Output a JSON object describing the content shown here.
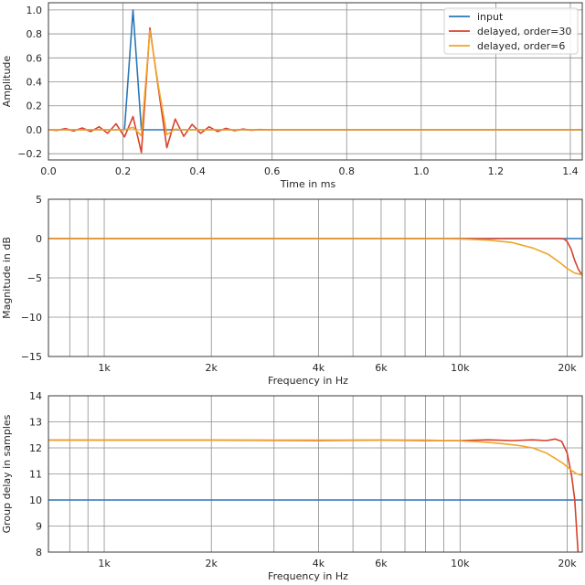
{
  "chart_data": [
    {
      "type": "line",
      "title": "",
      "xlabel": "Time in ms",
      "ylabel": "Amplitude",
      "xscale": "linear",
      "xlim": [
        0,
        1.432
      ],
      "ylim": [
        -0.252,
        1.06
      ],
      "xticks": [
        0,
        0.2,
        0.4,
        0.6,
        0.8,
        1.0,
        1.2,
        1.4
      ],
      "xtick_labels": [
        "0.0",
        "0.2",
        "0.4",
        "0.6",
        "0.8",
        "1.0",
        "1.2",
        "1.4"
      ],
      "yticks": [
        -0.2,
        0,
        0.2,
        0.4,
        0.6,
        0.8,
        1.0
      ],
      "ytick_labels": [
        "−0.2",
        "0.0",
        "0.2",
        "0.4",
        "0.6",
        "0.8",
        "1.0"
      ],
      "grid": true,
      "legend": {
        "placement": "top-right",
        "entries": [
          "input",
          "delayed, order=30",
          "delayed, order=6"
        ]
      },
      "sample_period_ms": 0.022676,
      "series": [
        {
          "name": "input",
          "color": "#2a77b8",
          "values": [
            0,
            0,
            0,
            0,
            0,
            0,
            0,
            0,
            0,
            0,
            1,
            0,
            0,
            0,
            0,
            0,
            0,
            0,
            0,
            0,
            0,
            0,
            0,
            0,
            0,
            0,
            0,
            0,
            0,
            0,
            0,
            0,
            0,
            0,
            0,
            0,
            0,
            0,
            0,
            0,
            0,
            0,
            0,
            0,
            0,
            0,
            0,
            0,
            0,
            0,
            0,
            0,
            0,
            0,
            0,
            0,
            0,
            0,
            0,
            0,
            0,
            0,
            0,
            0,
            0
          ]
        },
        {
          "name": "delayed, order=30",
          "color": "#d8412b",
          "values": [
            0,
            -0.005,
            0.01,
            -0.01,
            0.015,
            -0.015,
            0.025,
            -0.03,
            0.05,
            -0.06,
            0.11,
            -0.19,
            0.85,
            0.35,
            -0.15,
            0.09,
            -0.055,
            0.045,
            -0.03,
            0.025,
            -0.015,
            0.012,
            -0.008,
            0.006,
            -0.003,
            0.002,
            0,
            0,
            0,
            0,
            0,
            0,
            0,
            0,
            0,
            0,
            0,
            0,
            0,
            0,
            0,
            0,
            0,
            0,
            0,
            0,
            0,
            0,
            0,
            0,
            0,
            0,
            0,
            0,
            0,
            0,
            0,
            0,
            0,
            0,
            0,
            0,
            0,
            0,
            0
          ]
        },
        {
          "name": "delayed, order=6",
          "color": "#f0a52a",
          "values": [
            0,
            0,
            0,
            0,
            0,
            0,
            0,
            0,
            0,
            0,
            0.02,
            -0.05,
            0.83,
            0.37,
            -0.04,
            0.005,
            0,
            0,
            0,
            0,
            0,
            0,
            0,
            0,
            0,
            0,
            0,
            0,
            0,
            0,
            0,
            0,
            0,
            0,
            0,
            0,
            0,
            0,
            0,
            0,
            0,
            0,
            0,
            0,
            0,
            0,
            0,
            0,
            0,
            0,
            0,
            0,
            0,
            0,
            0,
            0,
            0,
            0,
            0,
            0,
            0,
            0,
            0,
            0,
            0
          ]
        }
      ]
    },
    {
      "type": "line",
      "xlabel": "Frequency in Hz",
      "ylabel": "Magnitude in dB",
      "xscale": "log",
      "xlim": [
        697,
        22050
      ],
      "ylim": [
        -15,
        5
      ],
      "xticks": [
        1000,
        2000,
        4000,
        6000,
        10000,
        20000
      ],
      "xtick_labels": [
        "1k",
        "2k",
        "4k",
        "6k",
        "10k",
        "20k"
      ],
      "xgrid": [
        800,
        900,
        1000,
        2000,
        3000,
        4000,
        5000,
        6000,
        7000,
        8000,
        9000,
        10000,
        20000
      ],
      "yticks": [
        -15,
        -10,
        -5,
        0,
        5
      ],
      "ytick_labels": [
        "−15",
        "−10",
        "−5",
        "0",
        "5"
      ],
      "grid": true,
      "series": [
        {
          "name": "input",
          "color": "#2a77b8",
          "x": [
            697,
            22050
          ],
          "y": [
            0,
            0
          ]
        },
        {
          "name": "delayed, order=30",
          "color": "#d8412b",
          "x": [
            697,
            10000,
            15000,
            19000,
            19600,
            20000,
            20500,
            21000,
            21500,
            22050
          ],
          "y": [
            0,
            0,
            0,
            0,
            -0.05,
            -0.4,
            -1.3,
            -2.8,
            -3.9,
            -4.7
          ]
        },
        {
          "name": "delayed, order=6",
          "color": "#f0a52a",
          "x": [
            697,
            8000,
            10000,
            12000,
            14000,
            16000,
            17700,
            19000,
            20000,
            21000,
            22050
          ],
          "y": [
            0,
            0,
            -0.05,
            -0.2,
            -0.5,
            -1.2,
            -2.0,
            -3.0,
            -3.8,
            -4.4,
            -4.6
          ]
        }
      ]
    },
    {
      "type": "line",
      "xlabel": "Frequency in Hz",
      "ylabel": "Group delay in samples",
      "xscale": "log",
      "xlim": [
        697,
        22050
      ],
      "ylim": [
        8,
        14
      ],
      "xticks": [
        1000,
        2000,
        4000,
        6000,
        10000,
        20000
      ],
      "xtick_labels": [
        "1k",
        "2k",
        "4k",
        "6k",
        "10k",
        "20k"
      ],
      "xgrid": [
        800,
        900,
        1000,
        2000,
        3000,
        4000,
        5000,
        6000,
        7000,
        8000,
        9000,
        10000,
        20000
      ],
      "yticks": [
        8,
        9,
        10,
        11,
        12,
        13,
        14
      ],
      "ytick_labels": [
        "8",
        "9",
        "10",
        "11",
        "12",
        "13",
        "14"
      ],
      "grid": true,
      "series": [
        {
          "name": "input",
          "color": "#2a77b8",
          "x": [
            697,
            22050
          ],
          "y": [
            10,
            10
          ]
        },
        {
          "name": "delayed, order=30",
          "color": "#d8412b",
          "x": [
            697,
            2000,
            4000,
            6000,
            8000,
            10000,
            12000,
            14000,
            16000,
            17500,
            18500,
            19300,
            20000,
            20600,
            21000,
            21460
          ],
          "y": [
            12.3,
            12.3,
            12.28,
            12.3,
            12.28,
            12.28,
            12.31,
            12.28,
            12.31,
            12.28,
            12.34,
            12.25,
            11.8,
            10.9,
            10.0,
            8.0
          ]
        },
        {
          "name": "delayed, order=6",
          "color": "#f0a52a",
          "x": [
            697,
            4000,
            8000,
            10000,
            11500,
            13000,
            14500,
            16000,
            17500,
            18500,
            19500,
            20500,
            21300,
            22050
          ],
          "y": [
            12.3,
            12.3,
            12.3,
            12.27,
            12.23,
            12.17,
            12.1,
            12.0,
            11.8,
            11.6,
            11.4,
            11.15,
            11.0,
            10.95
          ]
        }
      ]
    }
  ]
}
